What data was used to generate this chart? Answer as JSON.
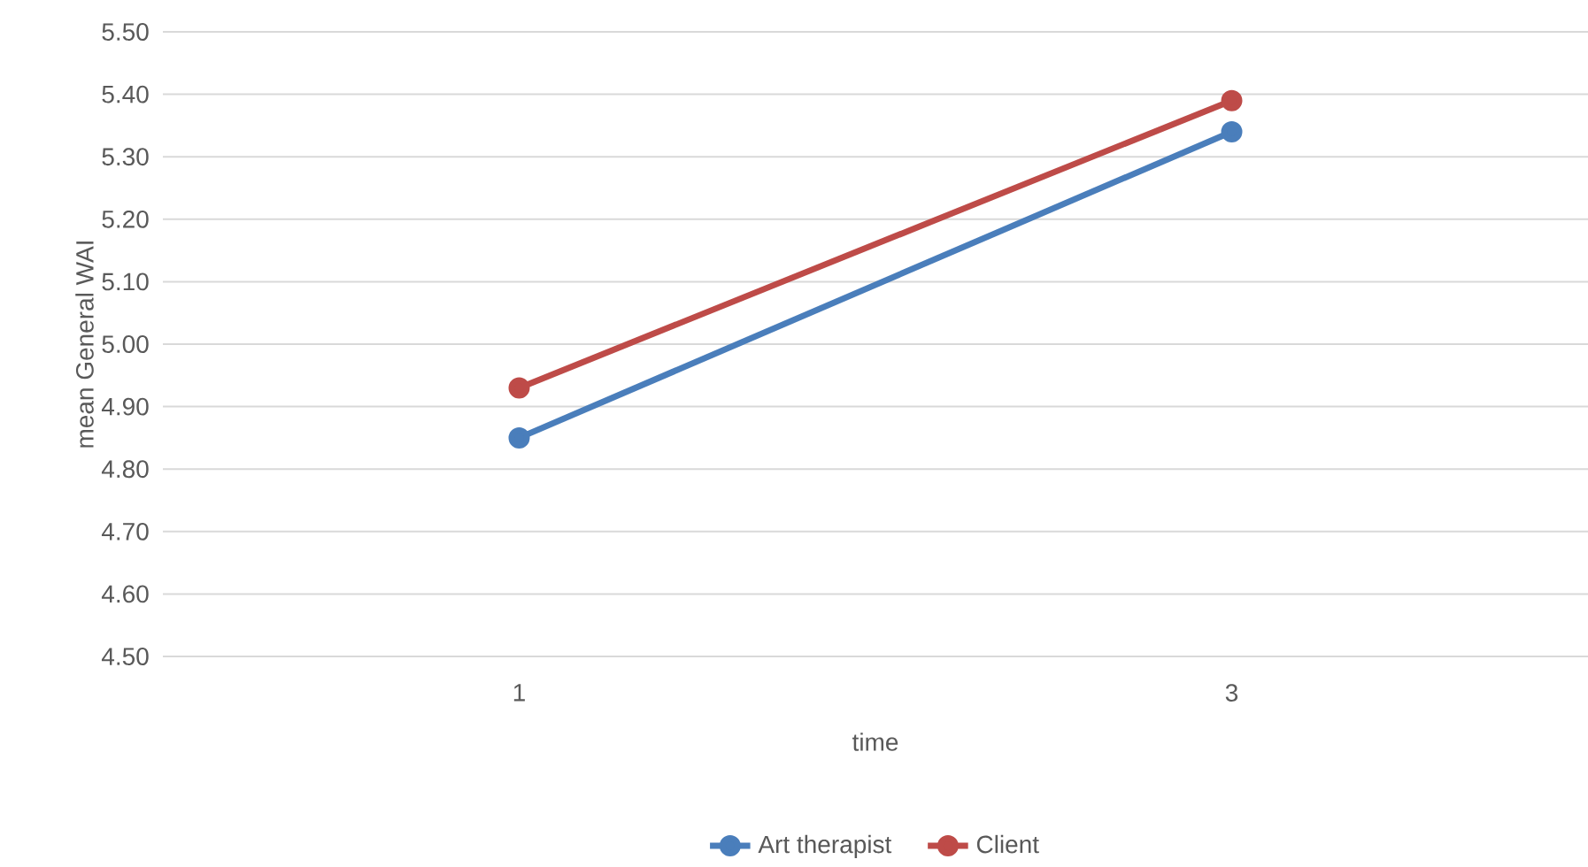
{
  "chart_data": {
    "type": "line",
    "xlabel": "time",
    "ylabel": "mean General WAI",
    "categories": [
      "1",
      "3"
    ],
    "series": [
      {
        "name": "Art therapist",
        "color": "#4a7ebb",
        "values": [
          4.85,
          5.34
        ]
      },
      {
        "name": "Client",
        "color": "#be4b48",
        "values": [
          4.93,
          5.39
        ]
      }
    ],
    "ylim": [
      4.5,
      5.5
    ],
    "yticks": [
      {
        "value": 4.5,
        "label": "4.50"
      },
      {
        "value": 4.6,
        "label": "4.60"
      },
      {
        "value": 4.7,
        "label": "4.70"
      },
      {
        "value": 4.8,
        "label": "4.80"
      },
      {
        "value": 4.9,
        "label": "4.90"
      },
      {
        "value": 5.0,
        "label": "5.00"
      },
      {
        "value": 5.1,
        "label": "5.10"
      },
      {
        "value": 5.2,
        "label": "5.20"
      },
      {
        "value": 5.3,
        "label": "5.30"
      },
      {
        "value": 5.4,
        "label": "5.40"
      },
      {
        "value": 5.5,
        "label": "5.50"
      }
    ],
    "grid": "y",
    "legend": "bottom",
    "marker": "circle",
    "line_style": "solid"
  }
}
